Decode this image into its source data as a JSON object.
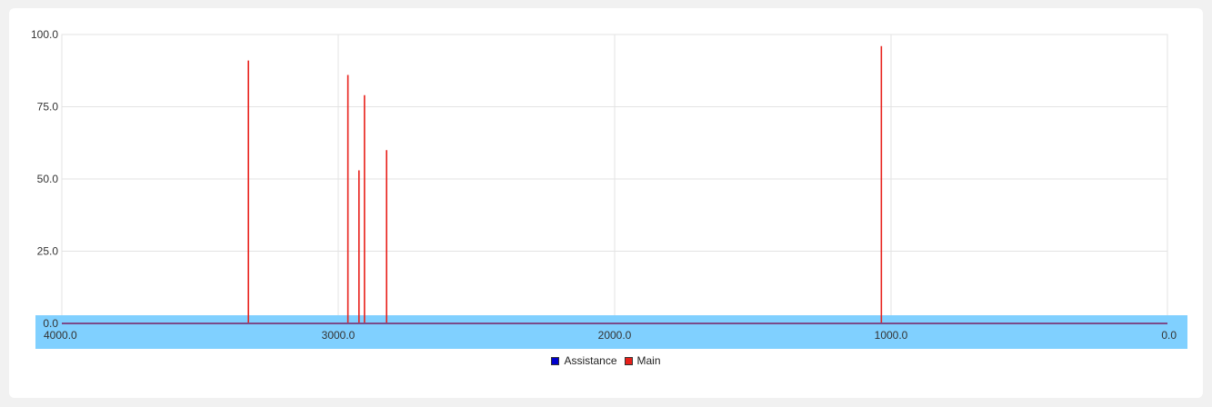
{
  "chart_data": {
    "type": "bar",
    "x_axis": {
      "min": 0,
      "max": 4000,
      "reversed": true,
      "ticks": [
        "4000.0",
        "3000.0",
        "2000.0",
        "1000.0",
        "0.0"
      ],
      "tick_values": [
        4000,
        3000,
        2000,
        1000,
        0
      ]
    },
    "y_axis": {
      "min": 0,
      "max": 100,
      "ticks": [
        "100.0",
        "75.0",
        "50.0",
        "25.0",
        "0.0"
      ],
      "tick_values": [
        100,
        75,
        50,
        25,
        0
      ]
    },
    "grid": true,
    "legend_position": "bottom-center",
    "series": [
      {
        "name": "Assistance",
        "color": "#0000cc",
        "x": [],
        "values": []
      },
      {
        "name": "Main",
        "color": "#e8201a",
        "x": [
          3325,
          2965,
          2925,
          2905,
          2825,
          1035
        ],
        "values": [
          91,
          86,
          53,
          79,
          60,
          96
        ]
      }
    ],
    "axis_band_color": "#80d0ff",
    "axis_line_color": "#7b4b8a"
  },
  "legend": {
    "assistance_label": "Assistance",
    "main_label": "Main"
  }
}
